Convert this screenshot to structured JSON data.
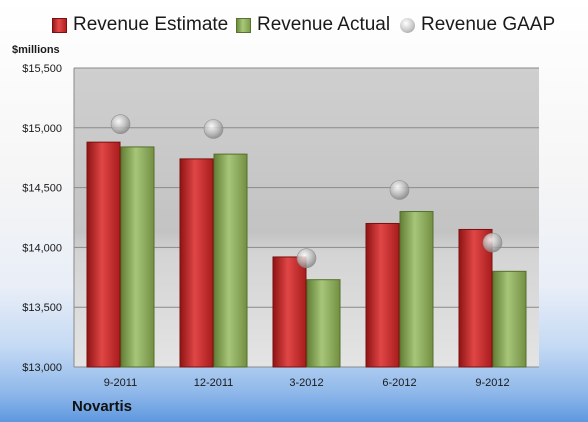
{
  "chart_data": {
    "type": "bar",
    "categories": [
      "9-2011",
      "12-2011",
      "3-2012",
      "6-2012",
      "9-2012"
    ],
    "series": [
      {
        "name": "Revenue Estimate",
        "values": [
          14880,
          14740,
          13920,
          14200,
          14150
        ]
      },
      {
        "name": "Revenue Actual",
        "values": [
          14840,
          14780,
          13730,
          14300,
          13800
        ]
      },
      {
        "name": "Revenue GAAP",
        "values": [
          15030,
          14990,
          13910,
          14480,
          14040
        ]
      }
    ],
    "ylim": [
      13000,
      15500
    ],
    "yticks": [
      13000,
      13500,
      14000,
      14500,
      15000,
      15500
    ],
    "ytick_labels": [
      "$13,000",
      "$13,500",
      "$14,000",
      "$14,500",
      "$15,000",
      "$15,500"
    ],
    "ylabel": "$millions",
    "legend_position": "top",
    "grid": true
  },
  "footer": {
    "company": "Novartis"
  },
  "colors": {
    "estimate": "#c0282b",
    "actual": "#8aab55",
    "gaap": "#b5b5b5",
    "plot_background": "#c8c8c8"
  }
}
